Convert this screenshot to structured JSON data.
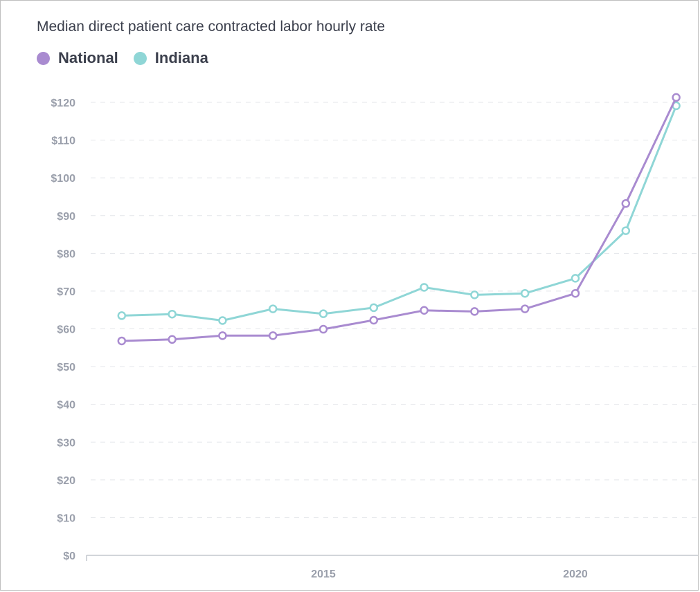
{
  "chart_data": {
    "type": "line",
    "title": "Median direct patient care contracted labor hourly rate",
    "x": [
      2011,
      2012,
      2013,
      2014,
      2015,
      2016,
      2017,
      2018,
      2019,
      2020,
      2021,
      2022
    ],
    "x_tick_values": [
      2015,
      2020
    ],
    "x_tick_labels": [
      "2015",
      "2020"
    ],
    "y_tick_values": [
      0,
      10,
      20,
      30,
      40,
      50,
      60,
      70,
      80,
      90,
      100,
      110,
      120
    ],
    "y_tick_labels": [
      "$0",
      "$10",
      "$20",
      "$30",
      "$40",
      "$50",
      "$60",
      "$70",
      "$80",
      "$90",
      "$100",
      "$110",
      "$120"
    ],
    "ylim": [
      0,
      123
    ],
    "grid": true,
    "legend": "top-left",
    "series": [
      {
        "name": "National",
        "color": "#a98bd0",
        "values": [
          56.8,
          57.2,
          58.2,
          58.2,
          59.9,
          62.3,
          64.9,
          64.6,
          65.3,
          69.4,
          93.2,
          121.3
        ]
      },
      {
        "name": "Indiana",
        "color": "#8fd6d6",
        "values": [
          63.5,
          63.9,
          62.2,
          65.3,
          64.0,
          65.6,
          71.0,
          69.0,
          69.4,
          73.4,
          86.0,
          119.1
        ]
      }
    ]
  }
}
